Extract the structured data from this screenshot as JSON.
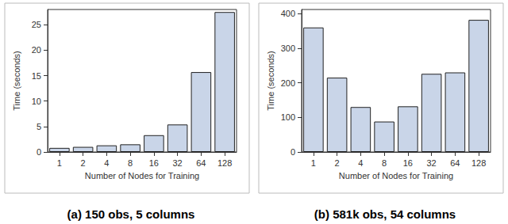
{
  "chart_data": [
    {
      "type": "bar",
      "title": "(a) 150 obs, 5 columns",
      "x_label": "Number of Nodes for Training",
      "y_label": "Time (seconds)",
      "categories": [
        "1",
        "2",
        "4",
        "8",
        "16",
        "32",
        "64",
        "128"
      ],
      "values": [
        0.8,
        1.0,
        1.3,
        1.5,
        3.3,
        5.4,
        15.7,
        27.5
      ],
      "color": "#c9d5e8",
      "ylim": [
        0,
        28
      ],
      "yticks": [
        0,
        5,
        10,
        15,
        20,
        25
      ],
      "grid": false
    },
    {
      "type": "bar",
      "title": "(b) 581k obs, 54 columns",
      "x_label": "Number of Nodes for Training",
      "y_label": "Time (seconds)",
      "categories": [
        "1",
        "2",
        "4",
        "8",
        "16",
        "32",
        "64",
        "128"
      ],
      "values": [
        360,
        215,
        130,
        88,
        132,
        226,
        230,
        382
      ],
      "color": "#c9d5e8",
      "ylim": [
        0,
        412
      ],
      "yticks": [
        0,
        100,
        200,
        300,
        400
      ],
      "grid": false
    }
  ]
}
